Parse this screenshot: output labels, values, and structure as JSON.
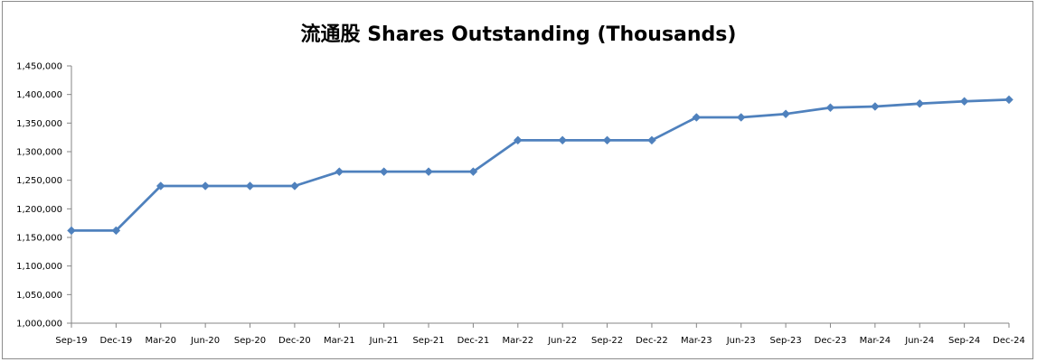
{
  "chart_data": {
    "type": "line",
    "title": "流通股 Shares Outstanding (Thousands)",
    "xlabel": "",
    "ylabel": "",
    "ylim": [
      1000000,
      1450000
    ],
    "y_ticks": [
      "1,000,000",
      "1,050,000",
      "1,100,000",
      "1,150,000",
      "1,200,000",
      "1,250,000",
      "1,300,000",
      "1,350,000",
      "1,400,000",
      "1,450,000"
    ],
    "y_tick_values": [
      1000000,
      1050000,
      1100000,
      1150000,
      1200000,
      1250000,
      1300000,
      1350000,
      1400000,
      1450000
    ],
    "categories": [
      "Sep-19",
      "Dec-19",
      "Mar-20",
      "Jun-20",
      "Sep-20",
      "Dec-20",
      "Mar-21",
      "Jun-21",
      "Sep-21",
      "Dec-21",
      "Mar-22",
      "Jun-22",
      "Sep-22",
      "Dec-22",
      "Mar-23",
      "Jun-23",
      "Sep-23",
      "Dec-23",
      "Mar-24",
      "Jun-24",
      "Sep-24",
      "Dec-24"
    ],
    "series": [
      {
        "color": "#4f81bd",
        "marker": "diamond",
        "values": [
          1162000,
          1162000,
          1240000,
          1240000,
          1240000,
          1240000,
          1265000,
          1265000,
          1265000,
          1265000,
          1320000,
          1320000,
          1320000,
          1320000,
          1360000,
          1360000,
          1366000,
          1377000,
          1379000,
          1384000,
          1388000,
          1391000
        ]
      }
    ],
    "grid": false,
    "legend": "none"
  }
}
